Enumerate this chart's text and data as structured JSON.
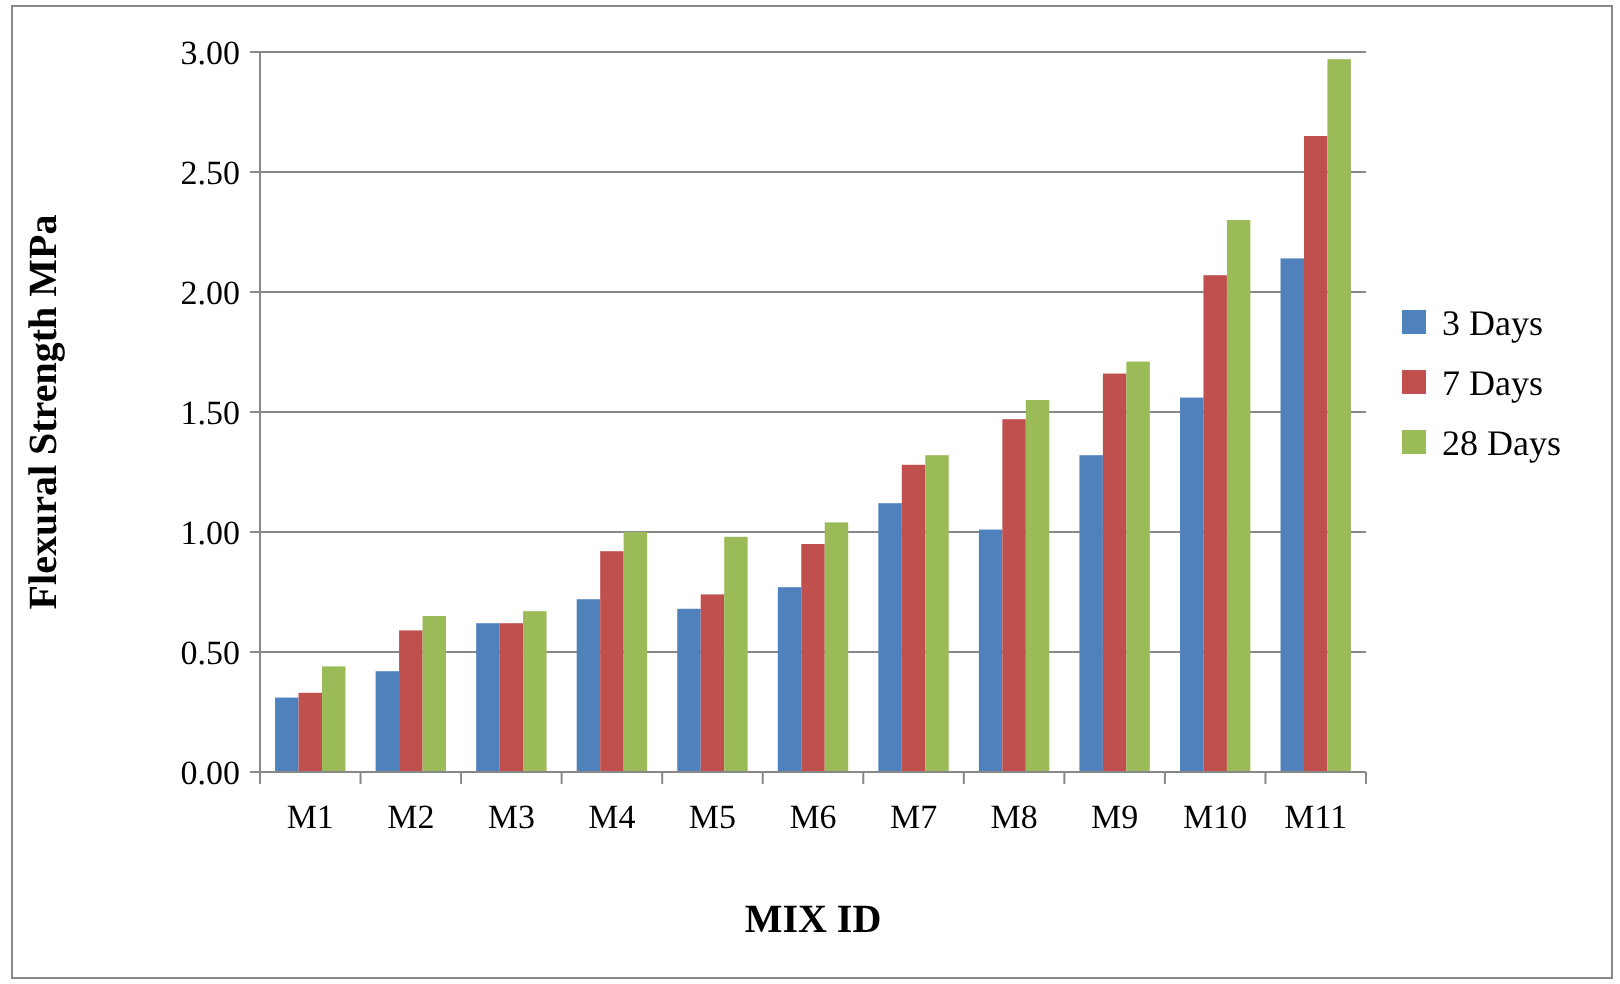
{
  "chart_data": {
    "type": "bar",
    "xlabel": "MIX ID",
    "ylabel": "Flexural Strength MPa",
    "categories": [
      "M1",
      "M2",
      "M3",
      "M4",
      "M5",
      "M6",
      "M7",
      "M8",
      "M9",
      "M10",
      "M11"
    ],
    "series": [
      {
        "name": "3 Days",
        "color": "#4f81bd",
        "values": [
          0.31,
          0.42,
          0.62,
          0.72,
          0.68,
          0.77,
          1.12,
          1.01,
          1.32,
          1.56,
          2.14
        ]
      },
      {
        "name": "7 Days",
        "color": "#c0504d",
        "values": [
          0.33,
          0.59,
          0.62,
          0.92,
          0.74,
          0.95,
          1.28,
          1.47,
          1.66,
          2.07,
          2.65
        ]
      },
      {
        "name": "28 Days",
        "color": "#9bbb59",
        "values": [
          0.44,
          0.65,
          0.67,
          1.0,
          0.98,
          1.04,
          1.32,
          1.55,
          1.71,
          2.3,
          2.97
        ]
      }
    ],
    "ylim": [
      0,
      3
    ],
    "yticks": [
      {
        "value": 0,
        "label": "0.00"
      },
      {
        "value": 0.5,
        "label": "0.50"
      },
      {
        "value": 1,
        "label": "1.00"
      },
      {
        "value": 1.5,
        "label": "1.50"
      },
      {
        "value": 2,
        "label": "2.00"
      },
      {
        "value": 2.5,
        "label": "2.50"
      },
      {
        "value": 3,
        "label": "3.00"
      }
    ],
    "grid": "y",
    "legend": "right"
  }
}
